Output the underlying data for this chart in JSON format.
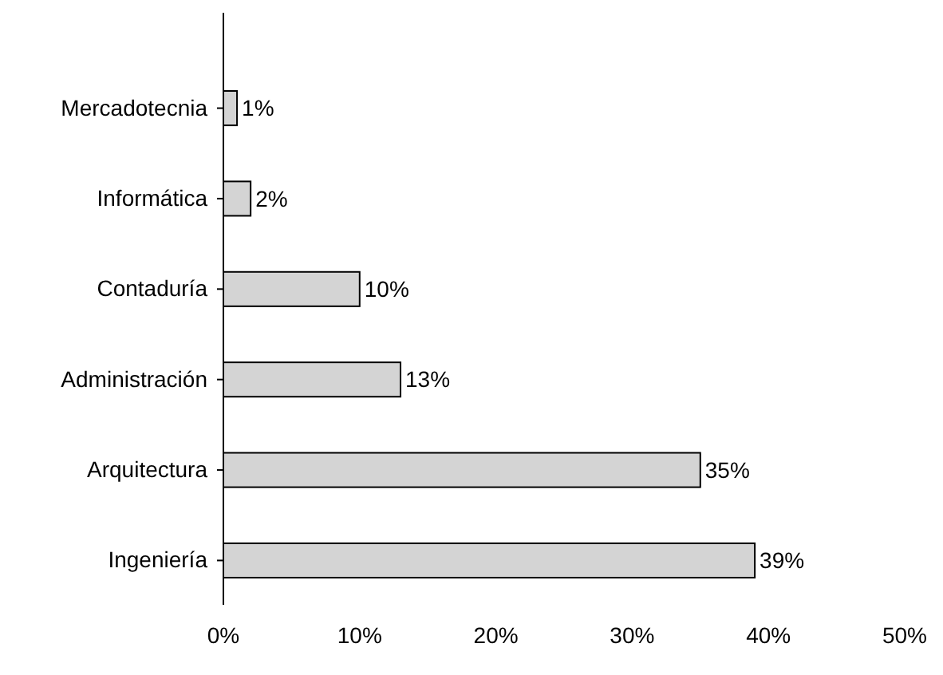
{
  "chart_data": {
    "type": "bar",
    "orientation": "horizontal",
    "categories": [
      "Mercadotecnia",
      "Informática",
      "Contaduría",
      "Administración",
      "Arquitectura",
      "Ingeniería"
    ],
    "values": [
      1,
      2,
      10,
      13,
      35,
      39
    ],
    "value_labels": [
      "1%",
      "2%",
      "10%",
      "13%",
      "35%",
      "39%"
    ],
    "color": "#d4d4d4",
    "xlim": [
      0,
      50
    ],
    "xticks": [
      {
        "value": 0,
        "label": "0%"
      },
      {
        "value": 10,
        "label": "10%"
      },
      {
        "value": 20,
        "label": "20%"
      },
      {
        "value": 30,
        "label": "30%"
      },
      {
        "value": 40,
        "label": "40%"
      },
      {
        "value": 50,
        "label": "50%"
      }
    ]
  }
}
